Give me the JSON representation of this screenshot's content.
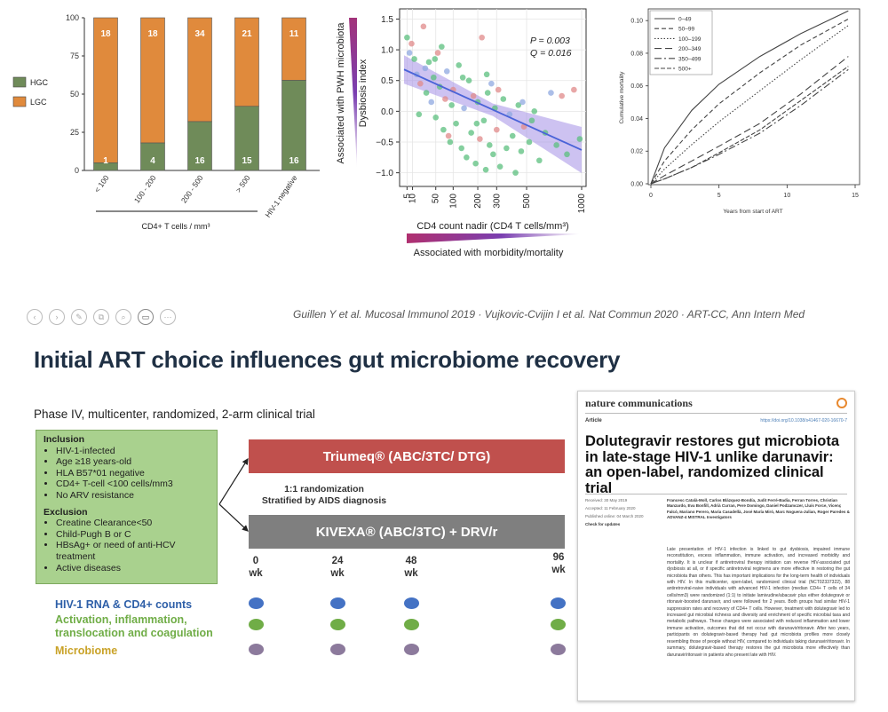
{
  "toolbar": {
    "buttons": [
      {
        "name": "back",
        "icon": "‹"
      },
      {
        "name": "forward",
        "icon": "›"
      },
      {
        "name": "draw",
        "icon": "✎"
      },
      {
        "name": "copy",
        "icon": "⧉"
      },
      {
        "name": "zoom",
        "icon": "⌕"
      },
      {
        "name": "camera",
        "icon": "▭"
      },
      {
        "name": "more",
        "icon": "⋯"
      }
    ]
  },
  "citation": "Guillen Y et al. Mucosal Immunol 2019 · Vujkovic-Cvijin I et al. Nat Commun 2020 · ART-CC, Ann Intern Med",
  "slide": {
    "title": "Initial ART choice influences gut microbiome recovery",
    "trial_description": "Phase IV, multicenter, randomized, 2-arm clinical trial",
    "inclusion": {
      "heading": "Inclusion",
      "items": [
        "HIV-1-infected",
        "Age ≥18 years-old",
        "HLA B57*01 negative",
        "CD4+ T-cell <100 cells/mm3",
        "No ARV resistance"
      ]
    },
    "exclusion": {
      "heading": "Exclusion",
      "items": [
        "Creatine Clearance<50",
        "Child-Pugh B or C",
        "HBsAg+ or need of anti-HCV treatment",
        "Active diseases"
      ]
    },
    "arm1": "Triumeq® (ABC/3TC/ DTG)",
    "arm2": "KIVEXA® (ABC/3TC) + DRV/r",
    "randomization_line1": "1:1 randomization",
    "randomization_line2": "Stratified by AIDS diagnosis",
    "timepoints": [
      {
        "value": "0",
        "unit": "wk"
      },
      {
        "value": "24",
        "unit": "wk"
      },
      {
        "value": "48",
        "unit": "wk"
      },
      {
        "value": "96",
        "unit": "wk"
      }
    ],
    "outcomes": [
      {
        "label": "HIV-1 RNA & CD4+ counts",
        "color": "#2e5fa8",
        "dot_color": "#4472c4"
      },
      {
        "label": "Activation, inflammation, translocation and coagulation",
        "color": "#70ad47",
        "dot_color": "#70ad47"
      },
      {
        "label": "Microbiome",
        "color": "#c9a227",
        "dot_color": "#8c7a9c"
      }
    ]
  },
  "paper": {
    "journal": "nature communications",
    "article_type": "Article",
    "doi": "https://doi.org/10.1038/s41467-020-16670-7",
    "title": "Dolutegravir restores gut microbiota in late-stage HIV-1 unlike darunavir: an open-label, randomized clinical trial",
    "meta_lines": [
      "Received: 30 May 2019",
      "Accepted: 11 February 2020",
      "Published online: 04 March 2020",
      "Check for updates"
    ],
    "authors": "Francesc Català-Moll, Carlos Blázquez-Bondía, Judit Ferré-Badia, Ferran Torres, Christian Manzardo, Eva Bonfill, Adrià Curran, Pere Domingo, Daniel Podzamczer, Lluís Force, Vicenç Falcó, Mariano Perero, Maria Casadellà, José María Miró, Marc Noguera-Julian, Roger Paredes & ADVANZ-4 MISTRAL Investigators",
    "abstract": "Late presentation of HIV-1 infection is linked to gut dysbiosis, impaired immune reconstitution, excess inflammation, immune activation, and increased morbidity and mortality. It is unclear if antiretroviral therapy initiation can reverse HIV-associated gut dysbiosis at all, or if specific antiretroviral regimens are more effective in restoring the gut microbiota than others. This has important implications for the long-term health of individuals with HIV. In this multicenter, open-label, randomized clinical trial (NCT02337322), 88 antiretroviral-naive individuals with advanced HIV-1 infection (median CD4+ T cells of 34 cells/mm3) were randomized (1:1) to initiate lamivudine/abacavir plus either dolutegravir or ritonavir-boosted darunavir, and were followed for 2 years. Both groups had similar HIV-1 suppression rates and recovery of CD4+ T cells. However, treatment with dolutegravir led to increased gut microbial richness and diversity and enrichment of specific microbial taxa and metabolic pathways. These changes were associated with reduced inflammation and lower immune activation, outcomes that did not occur with darunavir/ritonavir. After two years, participants on dolutegravir-based therapy had gut microbiota profiles more closely resembling those of people without HIV, compared to individuals taking darunavir/ritonavir. In summary, dolutegravir-based therapy restores the gut microbiota more effectively than darunavir/ritonavir in patients who present late with HIV."
  },
  "chart_data": [
    {
      "type": "bar",
      "stacked": true,
      "y_ticks": [
        "0",
        "25",
        "50",
        "75",
        "100"
      ],
      "ylim": [
        0,
        100
      ],
      "categories": [
        "< 100",
        "100 - 200",
        "200 - 500",
        "> 500",
        "HIV-1 negative"
      ],
      "series": [
        {
          "name": "HGC",
          "color": "#6f8b59",
          "values": [
            5,
            18,
            32,
            42,
            59
          ],
          "labels": [
            "1",
            "4",
            "16",
            "15",
            "16"
          ]
        },
        {
          "name": "LGC",
          "color": "#e08a3c",
          "values": [
            95,
            82,
            68,
            58,
            41
          ],
          "labels": [
            "18",
            "18",
            "34",
            "21",
            "11"
          ]
        }
      ],
      "xlabel": "CD4+ T cells  / mm³",
      "legend_position": "left"
    },
    {
      "type": "scatter",
      "x_ticks": [
        "5",
        "10",
        "50",
        "100",
        "200",
        "300",
        "500",
        "1000"
      ],
      "y_ticks": [
        "1.5",
        "1.0",
        "0.5",
        "0.0",
        "−0.5",
        "−1.0"
      ],
      "xlim": [
        3,
        1000
      ],
      "x_scale": "sqrt",
      "ylim": [
        -1.15,
        1.55
      ],
      "xlabel": "CD4 count nadir (CD4 T cells/mm³)",
      "ylabel": "Dysbiosis index",
      "side_label": "Associated with PWH microbiota",
      "bottom_label": "Associated with morbidity/mortality",
      "annotation_p": "P = 0.003",
      "annotation_q": "Q = 0.016",
      "trend_line": [
        [
          3,
          0.68
        ],
        [
          1000,
          -0.63
        ]
      ],
      "points": [
        [
          5,
          1.2,
          "g"
        ],
        [
          7,
          0.95,
          "b"
        ],
        [
          9,
          1.1,
          "p"
        ],
        [
          12,
          0.85,
          "g"
        ],
        [
          15,
          0.6,
          "b"
        ],
        [
          20,
          0.45,
          "p"
        ],
        [
          25,
          1.38,
          "p"
        ],
        [
          30,
          0.3,
          "g"
        ],
        [
          35,
          0.8,
          "g"
        ],
        [
          40,
          0.15,
          "b"
        ],
        [
          45,
          0.55,
          "g"
        ],
        [
          50,
          -0.1,
          "g"
        ],
        [
          55,
          0.95,
          "p"
        ],
        [
          60,
          0.4,
          "g"
        ],
        [
          65,
          1.05,
          "g"
        ],
        [
          70,
          -0.3,
          "g"
        ],
        [
          75,
          0.2,
          "p"
        ],
        [
          80,
          0.65,
          "b"
        ],
        [
          90,
          -0.5,
          "g"
        ],
        [
          95,
          0.1,
          "g"
        ],
        [
          100,
          0.35,
          "p"
        ],
        [
          110,
          -0.2,
          "g"
        ],
        [
          120,
          0.75,
          "g"
        ],
        [
          130,
          -0.6,
          "g"
        ],
        [
          140,
          0.05,
          "b"
        ],
        [
          150,
          -0.75,
          "g"
        ],
        [
          160,
          0.5,
          "g"
        ],
        [
          170,
          -0.35,
          "g"
        ],
        [
          180,
          0.25,
          "p"
        ],
        [
          190,
          -0.85,
          "g"
        ],
        [
          200,
          0.15,
          "g"
        ],
        [
          210,
          -0.45,
          "p"
        ],
        [
          220,
          1.2,
          "p"
        ],
        [
          230,
          -0.15,
          "g"
        ],
        [
          240,
          -0.95,
          "g"
        ],
        [
          250,
          0.3,
          "g"
        ],
        [
          260,
          -0.55,
          "g"
        ],
        [
          270,
          0.45,
          "b"
        ],
        [
          280,
          -0.7,
          "g"
        ],
        [
          290,
          0.05,
          "g"
        ],
        [
          300,
          -0.3,
          "p"
        ],
        [
          320,
          -0.9,
          "g"
        ],
        [
          340,
          0.2,
          "g"
        ],
        [
          360,
          -0.6,
          "g"
        ],
        [
          380,
          -0.05,
          "b"
        ],
        [
          400,
          -0.4,
          "g"
        ],
        [
          420,
          -1.0,
          "g"
        ],
        [
          440,
          0.1,
          "g"
        ],
        [
          460,
          -0.65,
          "g"
        ],
        [
          480,
          -0.25,
          "p"
        ],
        [
          520,
          -0.5,
          "g"
        ],
        [
          560,
          0.0,
          "g"
        ],
        [
          600,
          -0.8,
          "g"
        ],
        [
          650,
          -0.35,
          "g"
        ],
        [
          700,
          0.3,
          "b"
        ],
        [
          750,
          -0.55,
          "g"
        ],
        [
          800,
          0.25,
          "p"
        ],
        [
          850,
          -0.7,
          "g"
        ],
        [
          920,
          0.35,
          "p"
        ],
        [
          980,
          -0.45,
          "g"
        ],
        [
          18,
          -0.05,
          "g"
        ],
        [
          28,
          0.7,
          "b"
        ],
        [
          48,
          0.85,
          "g"
        ],
        [
          85,
          -0.4,
          "p"
        ],
        [
          135,
          0.55,
          "g"
        ],
        [
          195,
          -0.2,
          "g"
        ],
        [
          245,
          0.6,
          "g"
        ],
        [
          310,
          0.35,
          "p"
        ],
        [
          470,
          0.15,
          "b"
        ],
        [
          540,
          -0.15,
          "g"
        ]
      ],
      "colors": {
        "g": "#5bbf7d",
        "b": "#8fa8e0",
        "p": "#e08a8a",
        "trend": "#4a63d8",
        "band": "#a48fe6"
      }
    },
    {
      "type": "line",
      "ylabel": "Cumulative mortality",
      "xlabel": "Years from start of ART",
      "x_ticks": [
        "0",
        "5",
        "10",
        "15"
      ],
      "y_ticks": [
        "0.00",
        "0.02",
        "0.04",
        "0.06",
        "0.08",
        "0.10"
      ],
      "xlim": [
        0,
        15
      ],
      "ylim": [
        0,
        0.105
      ],
      "series": [
        {
          "name": "0–49",
          "dash": "",
          "points": [
            [
              0,
              0
            ],
            [
              1,
              0.022
            ],
            [
              3,
              0.045
            ],
            [
              5,
              0.061
            ],
            [
              8,
              0.078
            ],
            [
              11,
              0.092
            ],
            [
              14.5,
              0.106
            ]
          ]
        },
        {
          "name": "50–99",
          "dash": "5,3",
          "points": [
            [
              0,
              0
            ],
            [
              1,
              0.014
            ],
            [
              3,
              0.033
            ],
            [
              5,
              0.049
            ],
            [
              8,
              0.068
            ],
            [
              11,
              0.085
            ],
            [
              14.5,
              0.101
            ]
          ]
        },
        {
          "name": "100–199",
          "dash": "1.5,2",
          "points": [
            [
              0,
              0
            ],
            [
              1,
              0.009
            ],
            [
              3,
              0.024
            ],
            [
              5,
              0.038
            ],
            [
              8,
              0.057
            ],
            [
              11,
              0.076
            ],
            [
              14.5,
              0.097
            ]
          ]
        },
        {
          "name": "200–349",
          "dash": "8,4",
          "points": [
            [
              0,
              0
            ],
            [
              1,
              0.005
            ],
            [
              3,
              0.014
            ],
            [
              5,
              0.023
            ],
            [
              8,
              0.037
            ],
            [
              11,
              0.055
            ],
            [
              14.5,
              0.078
            ]
          ]
        },
        {
          "name": "350–499",
          "dash": "8,3,2,3",
          "points": [
            [
              0,
              0
            ],
            [
              1,
              0.003
            ],
            [
              3,
              0.01
            ],
            [
              5,
              0.018
            ],
            [
              8,
              0.031
            ],
            [
              11,
              0.048
            ],
            [
              14.5,
              0.07
            ]
          ]
        },
        {
          "name": "500+",
          "dash": "5,2",
          "points": [
            [
              0,
              0
            ],
            [
              1,
              0.003
            ],
            [
              3,
              0.01
            ],
            [
              5,
              0.019
            ],
            [
              8,
              0.033
            ],
            [
              11,
              0.051
            ],
            [
              14.5,
              0.072
            ]
          ]
        }
      ],
      "legend_position": "top-left"
    }
  ]
}
